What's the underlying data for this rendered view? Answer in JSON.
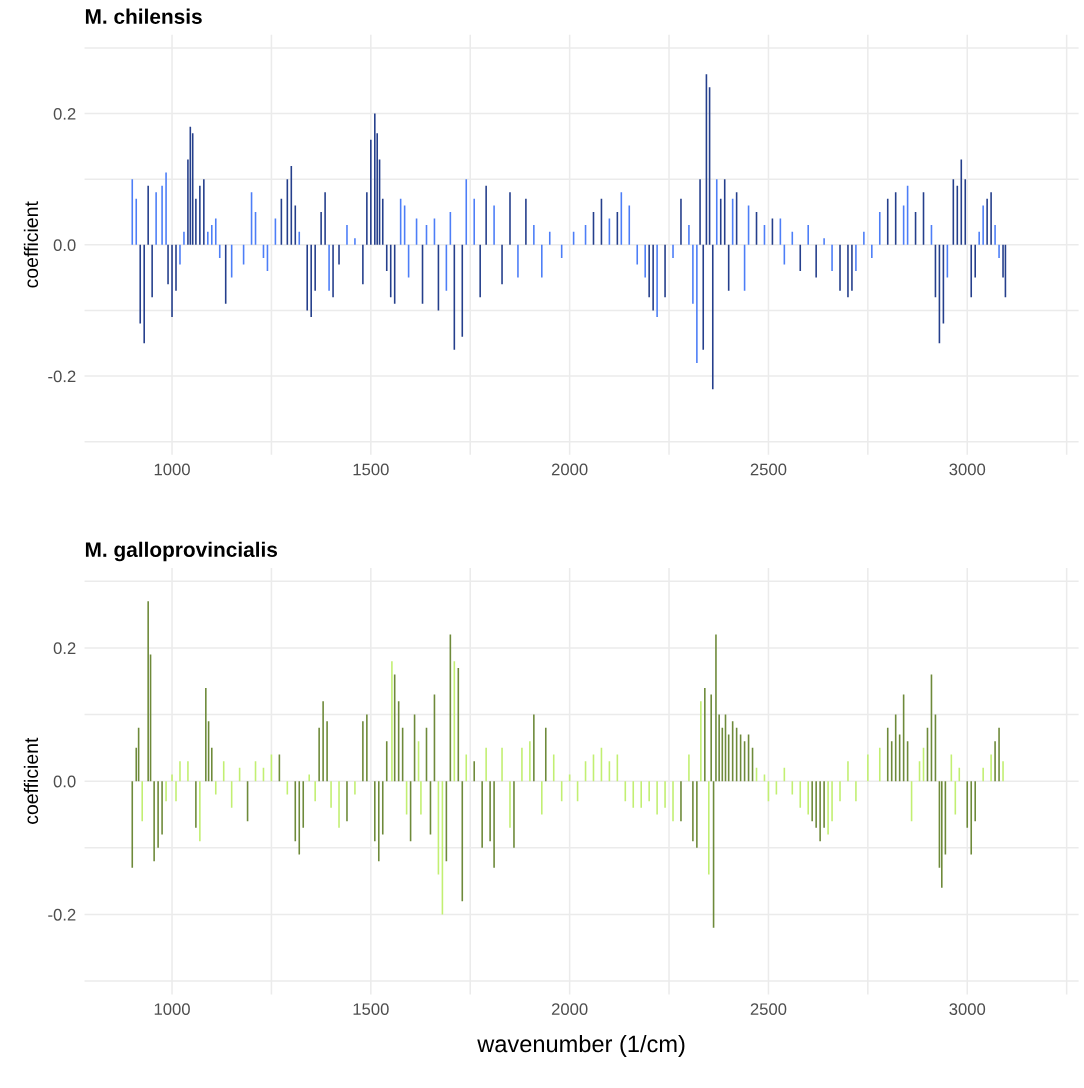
{
  "chart_data": [
    {
      "type": "bar",
      "title": "M. chilensis",
      "ylabel": "coefficient",
      "xlim": [
        780,
        3280
      ],
      "ylim": [
        -0.32,
        0.32
      ],
      "grid": true,
      "xticks": [
        {
          "value": 1000,
          "label": "1000"
        },
        {
          "value": 1250,
          "label": null
        },
        {
          "value": 1500,
          "label": "1500"
        },
        {
          "value": 1750,
          "label": null
        },
        {
          "value": 2000,
          "label": "2000"
        },
        {
          "value": 2250,
          "label": null
        },
        {
          "value": 2500,
          "label": "2500"
        },
        {
          "value": 2750,
          "label": null
        },
        {
          "value": 3000,
          "label": "3000"
        },
        {
          "value": 3250,
          "label": null
        }
      ],
      "yticks": [
        {
          "value": -0.3,
          "label": null
        },
        {
          "value": -0.2,
          "label": "-0.2"
        },
        {
          "value": -0.1,
          "label": null
        },
        {
          "value": 0,
          "label": "0.0"
        },
        {
          "value": 0.1,
          "label": null
        },
        {
          "value": 0.2,
          "label": "0.2"
        },
        {
          "value": 0.3,
          "label": null
        }
      ],
      "series": [
        {
          "color": "#4d7ef7",
          "x": [
            900,
            910,
            960,
            975,
            985,
            1020,
            1030,
            1090,
            1100,
            1110,
            1120,
            1150,
            1180,
            1200,
            1210,
            1230,
            1240,
            1260,
            1320,
            1395,
            1440,
            1460,
            1575,
            1585,
            1595,
            1615,
            1640,
            1660,
            1690,
            1700,
            1740,
            1760,
            1810,
            1870,
            1910,
            1930,
            1950,
            1980,
            2010,
            2040,
            2100,
            2130,
            2150,
            2170,
            2190,
            2220,
            2260,
            2300,
            2310,
            2320,
            2370,
            2410,
            2440,
            2450,
            2490,
            2530,
            2540,
            2560,
            2600,
            2640,
            2660,
            2720,
            2740,
            2760,
            2780,
            2840,
            2850,
            2910,
            2950,
            3030,
            3040,
            3070,
            3080
          ],
          "values": [
            0.1,
            0.07,
            0.08,
            0.09,
            0.11,
            -0.03,
            0.02,
            0.02,
            0.03,
            0.04,
            -0.02,
            -0.05,
            -0.03,
            0.08,
            0.05,
            -0.02,
            -0.04,
            0.04,
            0.02,
            -0.07,
            0.03,
            0.01,
            0.07,
            0.06,
            -0.05,
            0.04,
            0.03,
            0.04,
            -0.07,
            0.05,
            0.1,
            0.07,
            0.06,
            -0.05,
            0.03,
            -0.05,
            0.02,
            -0.02,
            0.02,
            0.03,
            0.04,
            0.08,
            0.06,
            -0.03,
            -0.05,
            -0.11,
            -0.02,
            0.03,
            -0.09,
            -0.18,
            0.1,
            0.07,
            -0.07,
            0.06,
            0.03,
            0.04,
            -0.03,
            0.02,
            0.03,
            0.01,
            -0.04,
            -0.04,
            0.02,
            -0.02,
            0.05,
            0.06,
            0.09,
            0.03,
            -0.05,
            0.02,
            0.06,
            0.03,
            -0.02
          ]
        },
        {
          "color": "#253f8c",
          "x": [
            920,
            930,
            940,
            950,
            990,
            1000,
            1010,
            1040,
            1046,
            1052,
            1060,
            1070,
            1080,
            1135,
            1275,
            1290,
            1300,
            1310,
            1340,
            1350,
            1360,
            1375,
            1385,
            1405,
            1420,
            1480,
            1490,
            1500,
            1510,
            1516,
            1522,
            1530,
            1540,
            1550,
            1560,
            1630,
            1670,
            1710,
            1730,
            1775,
            1790,
            1830,
            1850,
            1890,
            2060,
            2080,
            2120,
            2200,
            2210,
            2240,
            2280,
            2328,
            2336,
            2344,
            2352,
            2360,
            2380,
            2390,
            2400,
            2420,
            2470,
            2510,
            2580,
            2620,
            2680,
            2700,
            2710,
            2800,
            2820,
            2870,
            2890,
            2920,
            2930,
            2940,
            2965,
            2975,
            2985,
            2995,
            3010,
            3020,
            3050,
            3060,
            3090,
            3096
          ],
          "values": [
            -0.12,
            -0.15,
            0.09,
            -0.08,
            -0.06,
            -0.11,
            -0.07,
            0.13,
            0.18,
            0.17,
            0.07,
            0.09,
            0.1,
            -0.09,
            0.07,
            0.1,
            0.12,
            0.06,
            -0.1,
            -0.11,
            -0.07,
            0.05,
            0.08,
            -0.08,
            -0.03,
            -0.06,
            0.08,
            0.16,
            0.2,
            0.17,
            0.13,
            0.07,
            -0.04,
            -0.08,
            -0.09,
            -0.09,
            -0.1,
            -0.16,
            -0.14,
            -0.08,
            0.09,
            -0.06,
            0.08,
            0.07,
            0.05,
            0.07,
            0.05,
            -0.08,
            -0.1,
            -0.08,
            0.07,
            0.1,
            -0.16,
            0.26,
            0.24,
            -0.22,
            0.07,
            0.1,
            -0.07,
            0.08,
            0.05,
            0.04,
            -0.04,
            -0.05,
            -0.07,
            -0.08,
            -0.07,
            0.07,
            0.08,
            0.05,
            0.08,
            -0.08,
            -0.15,
            -0.12,
            0.1,
            0.09,
            0.13,
            0.1,
            -0.08,
            -0.05,
            0.07,
            0.08,
            -0.05,
            -0.08
          ]
        }
      ]
    },
    {
      "type": "bar",
      "title": "M. galloprovincialis",
      "ylabel": "coefficient",
      "xlabel": "wavenumber (1/cm)",
      "xlim": [
        780,
        3280
      ],
      "ylim": [
        -0.32,
        0.32
      ],
      "grid": true,
      "xticks": [
        {
          "value": 1000,
          "label": "1000"
        },
        {
          "value": 1250,
          "label": null
        },
        {
          "value": 1500,
          "label": "1500"
        },
        {
          "value": 1750,
          "label": null
        },
        {
          "value": 2000,
          "label": "2000"
        },
        {
          "value": 2250,
          "label": null
        },
        {
          "value": 2500,
          "label": "2500"
        },
        {
          "value": 2750,
          "label": null
        },
        {
          "value": 3000,
          "label": "3000"
        },
        {
          "value": 3250,
          "label": null
        }
      ],
      "yticks": [
        {
          "value": -0.3,
          "label": null
        },
        {
          "value": -0.2,
          "label": "-0.2"
        },
        {
          "value": -0.1,
          "label": null
        },
        {
          "value": 0,
          "label": "0.0"
        },
        {
          "value": 0.1,
          "label": null
        },
        {
          "value": 0.2,
          "label": "0.2"
        },
        {
          "value": 0.3,
          "label": null
        }
      ],
      "series": [
        {
          "color": "#c2ef72",
          "x": [
            925,
            985,
            1000,
            1010,
            1020,
            1040,
            1070,
            1110,
            1130,
            1150,
            1170,
            1210,
            1230,
            1250,
            1290,
            1345,
            1360,
            1400,
            1420,
            1460,
            1553,
            1590,
            1620,
            1626,
            1670,
            1680,
            1710,
            1740,
            1790,
            1830,
            1850,
            1880,
            1900,
            1930,
            1960,
            1980,
            2000,
            2020,
            2040,
            2060,
            2080,
            2100,
            2120,
            2140,
            2160,
            2180,
            2200,
            2220,
            2240,
            2260,
            2300,
            2330,
            2350,
            2470,
            2490,
            2500,
            2520,
            2540,
            2560,
            2580,
            2600,
            2650,
            2660,
            2680,
            2700,
            2720,
            2750,
            2780,
            2860,
            2880,
            2890,
            2960,
            2970,
            2980,
            3040,
            3060,
            3090
          ],
          "values": [
            -0.06,
            -0.03,
            0.01,
            -0.03,
            0.03,
            0.03,
            -0.09,
            -0.02,
            0.03,
            -0.04,
            0.02,
            0.03,
            0.02,
            0.04,
            -0.02,
            0.01,
            -0.03,
            -0.04,
            -0.07,
            -0.02,
            0.18,
            -0.05,
            0.06,
            -0.05,
            -0.14,
            -0.2,
            0.18,
            0.04,
            0.05,
            0.05,
            -0.07,
            0.05,
            0.06,
            -0.05,
            0.04,
            -0.03,
            0.01,
            -0.03,
            0.03,
            0.04,
            0.05,
            0.03,
            0.04,
            -0.03,
            -0.04,
            -0.04,
            -0.03,
            -0.05,
            -0.04,
            -0.06,
            0.04,
            0.12,
            -0.14,
            0.02,
            0.01,
            -0.03,
            -0.02,
            0.02,
            -0.02,
            -0.04,
            -0.05,
            -0.08,
            -0.06,
            -0.03,
            0.03,
            -0.03,
            0.04,
            0.05,
            -0.06,
            0.03,
            0.05,
            0.04,
            -0.05,
            0.02,
            0.02,
            0.04,
            0.03
          ]
        },
        {
          "color": "#6e8a3a",
          "x": [
            900,
            910,
            916,
            940,
            946,
            955,
            965,
            975,
            1060,
            1085,
            1092,
            1100,
            1190,
            1270,
            1310,
            1320,
            1330,
            1370,
            1380,
            1390,
            1440,
            1480,
            1490,
            1510,
            1520,
            1530,
            1540,
            1560,
            1570,
            1580,
            1600,
            1610,
            1640,
            1650,
            1660,
            1690,
            1700,
            1720,
            1730,
            1760,
            1780,
            1800,
            1810,
            1860,
            1910,
            1940,
            2280,
            2310,
            2320,
            2340,
            2356,
            2362,
            2368,
            2376,
            2384,
            2392,
            2400,
            2410,
            2420,
            2430,
            2440,
            2450,
            2460,
            2610,
            2620,
            2630,
            2640,
            2800,
            2810,
            2820,
            2830,
            2840,
            2850,
            2900,
            2910,
            2920,
            2930,
            2936,
            2945,
            3000,
            3010,
            3020,
            3070,
            3080
          ],
          "values": [
            -0.13,
            0.05,
            0.08,
            0.27,
            0.19,
            -0.12,
            -0.1,
            -0.08,
            -0.07,
            0.14,
            0.09,
            0.05,
            -0.06,
            0.04,
            -0.09,
            -0.11,
            -0.07,
            0.08,
            0.12,
            0.09,
            -0.06,
            0.09,
            0.1,
            -0.09,
            -0.12,
            -0.08,
            0.06,
            0.16,
            0.12,
            0.08,
            -0.09,
            0.1,
            0.08,
            -0.08,
            0.13,
            -0.12,
            0.22,
            0.17,
            -0.18,
            0.03,
            -0.1,
            -0.09,
            -0.13,
            -0.1,
            0.1,
            0.08,
            -0.06,
            -0.09,
            -0.1,
            0.14,
            0.13,
            -0.22,
            0.22,
            0.1,
            0.08,
            0.1,
            0.07,
            0.09,
            0.08,
            0.07,
            0.06,
            0.07,
            0.05,
            -0.06,
            -0.07,
            -0.09,
            -0.07,
            0.08,
            0.06,
            0.1,
            0.07,
            0.13,
            0.06,
            0.08,
            0.16,
            0.1,
            -0.13,
            -0.16,
            -0.11,
            -0.07,
            -0.11,
            -0.06,
            0.06,
            0.08
          ]
        }
      ]
    }
  ]
}
